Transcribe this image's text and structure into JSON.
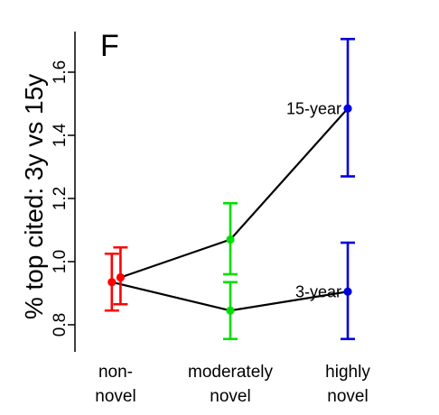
{
  "chart_data": {
    "type": "line",
    "panel_label": "F",
    "ylabel": "% top cited: 3y vs 15y",
    "ylim": [
      0.72,
      1.76
    ],
    "yticks": [
      0.8,
      1.0,
      1.2,
      1.4,
      1.6
    ],
    "ytick_labels": [
      "0.8",
      "1.0",
      "1.2",
      "1.4",
      "1.6"
    ],
    "categories": [
      {
        "line1": "non-",
        "line2": "novel"
      },
      {
        "line1": "moderately",
        "line2": "novel"
      },
      {
        "line1": "highly",
        "line2": "novel"
      }
    ],
    "category_colors": [
      "#ff0000",
      "#00e000",
      "#0000dd"
    ],
    "series": [
      {
        "name": "15-year",
        "x_offsets": [
          0.09,
          0.0,
          0.0
        ],
        "values": [
          0.95,
          1.07,
          1.485
        ],
        "err_low": [
          0.865,
          0.96,
          1.27
        ],
        "err_high": [
          1.045,
          1.185,
          1.705
        ]
      },
      {
        "name": "3-year",
        "x_offsets": [
          -0.07,
          0.0,
          0.0
        ],
        "values": [
          0.935,
          0.845,
          0.905
        ],
        "err_low": [
          0.845,
          0.755,
          0.755
        ],
        "err_high": [
          1.025,
          0.935,
          1.06
        ]
      }
    ],
    "grid": false,
    "legend": "none"
  }
}
